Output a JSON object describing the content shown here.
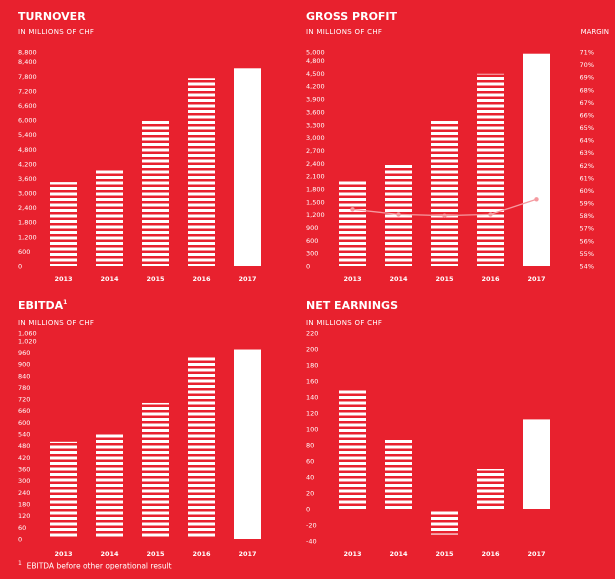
{
  "background": "#e8212e",
  "bar_color": "#ffffff",
  "stripe_color": "#e8212e",
  "chart_data": [
    {
      "type": "bar",
      "title": "TURNOVER",
      "title_sup": "",
      "subtitle": "IN MILLIONS OF CHF",
      "categories": [
        "2013",
        "2014",
        "2015",
        "2016",
        "2017"
      ],
      "values": [
        3450,
        4000,
        6030,
        7720,
        8130
      ],
      "ylim": [
        0,
        8800
      ],
      "yticks": [
        0,
        600,
        1200,
        1800,
        2400,
        3000,
        3600,
        4200,
        4800,
        5400,
        6000,
        6600,
        7200,
        7800,
        8400,
        8800
      ],
      "striped": [
        true,
        true,
        true,
        true,
        false
      ]
    },
    {
      "type": "bar",
      "title": "GROSS PROFIT",
      "title_sup": "",
      "subtitle": "IN MILLIONS OF CHF",
      "right_label": "MARGIN",
      "categories": [
        "2013",
        "2014",
        "2015",
        "2016",
        "2017"
      ],
      "values": [
        2020,
        2390,
        3400,
        4490,
        4960
      ],
      "ylim": [
        0,
        5000
      ],
      "yticks": [
        0,
        300,
        600,
        900,
        1200,
        1500,
        1800,
        2100,
        2400,
        2700,
        3000,
        3300,
        3600,
        3900,
        4200,
        4500,
        4800,
        5000
      ],
      "striped": [
        true,
        true,
        true,
        true,
        false
      ],
      "margin": {
        "values": [
          58.5,
          58.1,
          58.0,
          58.1,
          59.3
        ],
        "ylim": [
          54,
          71
        ],
        "yticks": [
          54,
          55,
          56,
          57,
          58,
          59,
          60,
          61,
          62,
          63,
          64,
          65,
          66,
          67,
          68,
          69,
          70,
          71
        ],
        "unit": "%"
      }
    },
    {
      "type": "bar",
      "title": "EBITDA",
      "title_sup": "1",
      "subtitle": "IN MILLIONS OF CHF",
      "categories": [
        "2013",
        "2014",
        "2015",
        "2016",
        "2017"
      ],
      "values": [
        500,
        550,
        700,
        935,
        975
      ],
      "ylim": [
        0,
        1060
      ],
      "yticks": [
        0,
        60,
        120,
        180,
        240,
        300,
        360,
        420,
        480,
        540,
        600,
        660,
        720,
        780,
        840,
        900,
        960,
        1020,
        1060
      ],
      "striped": [
        true,
        true,
        true,
        true,
        false
      ]
    },
    {
      "type": "bar",
      "title": "NET EARNINGS",
      "title_sup": "",
      "subtitle": "IN MILLIONS OF CHF",
      "categories": [
        "2013",
        "2014",
        "2015",
        "2016",
        "2017"
      ],
      "values": [
        150,
        88,
        -32,
        50,
        112
      ],
      "ylim": [
        -40,
        220
      ],
      "yticks": [
        -40,
        -20,
        0,
        20,
        40,
        60,
        80,
        100,
        120,
        140,
        160,
        180,
        200,
        220
      ],
      "striped": [
        true,
        true,
        true,
        true,
        false
      ]
    }
  ],
  "footnote": {
    "marker": "1",
    "text": "EBITDA before other operational result"
  }
}
